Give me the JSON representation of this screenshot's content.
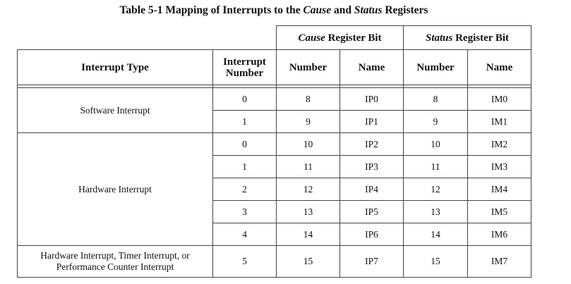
{
  "caption": {
    "prefix": "Table 5-1 Mapping of Interrupts to the",
    "cause_word": "Cause",
    "and_word": "and",
    "status_word": "Status",
    "suffix": "Registers"
  },
  "headers": {
    "interrupt_type": "Interrupt Type",
    "interrupt_number_line1": "Interrupt",
    "interrupt_number_line2": "Number",
    "cause_group_italic": "Cause",
    "cause_group_rest": "Register Bit",
    "status_group_italic": "Status",
    "status_group_rest": "Register Bit",
    "number": "Number",
    "name": "Name"
  },
  "groups": [
    {
      "type": "Software Interrupt",
      "rows": [
        {
          "irq": "0",
          "cause_num": "8",
          "cause_name": "IP0",
          "status_num": "8",
          "status_name": "IM0"
        },
        {
          "irq": "1",
          "cause_num": "9",
          "cause_name": "IP1",
          "status_num": "9",
          "status_name": "IM1"
        }
      ]
    },
    {
      "type": "Hardware Interrupt",
      "rows": [
        {
          "irq": "0",
          "cause_num": "10",
          "cause_name": "IP2",
          "status_num": "10",
          "status_name": "IM2"
        },
        {
          "irq": "1",
          "cause_num": "11",
          "cause_name": "IP3",
          "status_num": "11",
          "status_name": "IM3"
        },
        {
          "irq": "2",
          "cause_num": "12",
          "cause_name": "IP4",
          "status_num": "12",
          "status_name": "IM4"
        },
        {
          "irq": "3",
          "cause_num": "13",
          "cause_name": "IP5",
          "status_num": "13",
          "status_name": "IM5"
        },
        {
          "irq": "4",
          "cause_num": "14",
          "cause_name": "IP6",
          "status_num": "14",
          "status_name": "IM6"
        }
      ]
    },
    {
      "type_line1": "Hardware Interrupt, Timer Interrupt, or",
      "type_line2": "Performance Counter Interrupt",
      "rows": [
        {
          "irq": "5",
          "cause_num": "15",
          "cause_name": "IP7",
          "status_num": "15",
          "status_name": "IM7"
        }
      ]
    }
  ]
}
